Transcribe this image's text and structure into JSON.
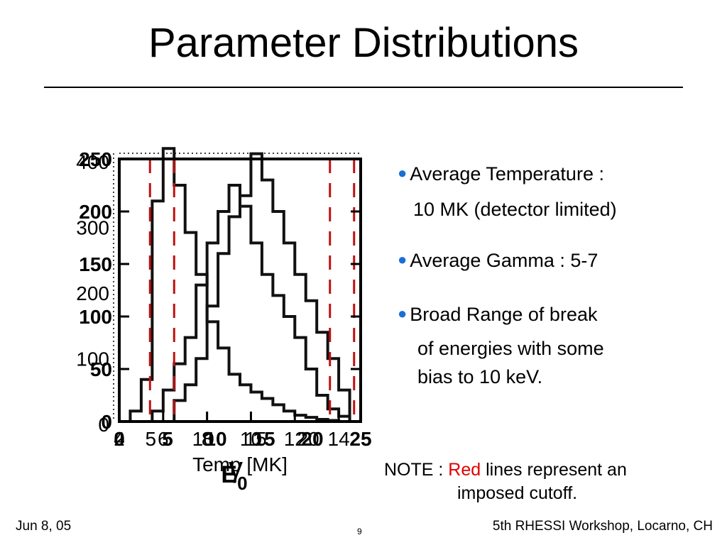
{
  "slide": {
    "title": "Parameter Distributions",
    "bullets": [
      {
        "line1": "Average Temperature :",
        "line2": "10 MK (detector limited)"
      },
      {
        "line1": "Average Gamma : 5-7"
      },
      {
        "line1": "Broad Range of break",
        "line2": "of energies with some",
        "line3": "bias to 10 keV."
      }
    ],
    "note": {
      "prefix": "NOTE : ",
      "red_word": "Red",
      "rest": " lines represent an",
      "line2": "imposed cutoff."
    },
    "footer": {
      "left": "Jun 8, 05",
      "center": "9",
      "right": "5th RHESSI Workshop, Locarno, CH"
    }
  },
  "chart_data": {
    "type": "bar",
    "description_note": "Three overlaid step histograms sharing one plot box; overlapping axis tick labels",
    "colors": {
      "histogram": "#111111",
      "cutoff": "#c01010"
    },
    "x_scale_temp": {
      "range": [
        4,
        15
      ],
      "ticks": [
        "4",
        "6",
        "8",
        "10",
        "12",
        "14"
      ],
      "xlabel": "Temp [MK]"
    },
    "x_scale_gamma": {
      "range": [
        2,
        25
      ],
      "ticks": [
        "2",
        "5",
        "10",
        "15",
        "20",
        "25"
      ],
      "xlabel": "γ"
    },
    "x_scale_e0": {
      "range": [
        0,
        25
      ],
      "ticks": [
        "0",
        "5",
        "10",
        "15",
        "20",
        "25"
      ],
      "xlabel": "E0"
    },
    "y_scale_a": {
      "range": [
        0,
        250
      ],
      "ticks": [
        "0",
        "50",
        "100",
        "150",
        "200",
        "250"
      ]
    },
    "y_scale_b": {
      "range": [
        0,
        400
      ],
      "ticks": [
        "0",
        "100",
        "200",
        "300",
        "400"
      ]
    },
    "series": [
      {
        "name_note": "temperature histogram",
        "bin_edges": [
          4.0,
          4.5,
          5.0,
          5.5,
          6.0,
          6.5,
          7.0,
          7.5,
          8.0,
          8.5,
          9.0,
          9.5,
          10.0,
          10.5,
          11.0,
          11.5,
          12.0,
          12.5,
          13.0,
          13.5,
          14.0,
          14.5,
          15.0
        ],
        "counts": [
          0,
          10,
          40,
          210,
          260,
          225,
          180,
          140,
          95,
          70,
          45,
          35,
          28,
          22,
          16,
          10,
          6,
          4,
          2,
          1,
          0,
          0
        ]
      },
      {
        "name_note": "gamma histogram",
        "bin_edges": [
          4.0,
          4.5,
          5.0,
          5.5,
          6.0,
          6.5,
          7.0,
          7.5,
          8.0,
          8.5,
          9.0,
          9.5,
          10.0,
          10.5,
          11.0,
          11.5,
          12.0,
          12.5,
          13.0,
          13.5,
          14.0,
          14.5,
          15.0
        ],
        "counts": [
          0,
          0,
          0,
          10,
          30,
          55,
          80,
          130,
          170,
          200,
          225,
          205,
          170,
          140,
          120,
          100,
          80,
          50,
          25,
          12,
          5,
          0
        ]
      },
      {
        "name_note": "break energy histogram",
        "bin_edges": [
          4.0,
          4.5,
          5.0,
          5.5,
          6.0,
          6.5,
          7.0,
          7.5,
          8.0,
          8.5,
          9.0,
          9.5,
          10.0,
          10.5,
          11.0,
          11.5,
          12.0,
          12.5,
          13.0,
          13.5,
          14.0,
          14.5,
          15.0
        ],
        "counts": [
          0,
          0,
          0,
          0,
          0,
          20,
          35,
          60,
          110,
          160,
          195,
          215,
          255,
          230,
          200,
          170,
          140,
          115,
          85,
          60,
          30,
          0
        ]
      }
    ],
    "cutoffs_temp": [
      5.4,
      6.5,
      13.6,
      14.7
    ]
  }
}
